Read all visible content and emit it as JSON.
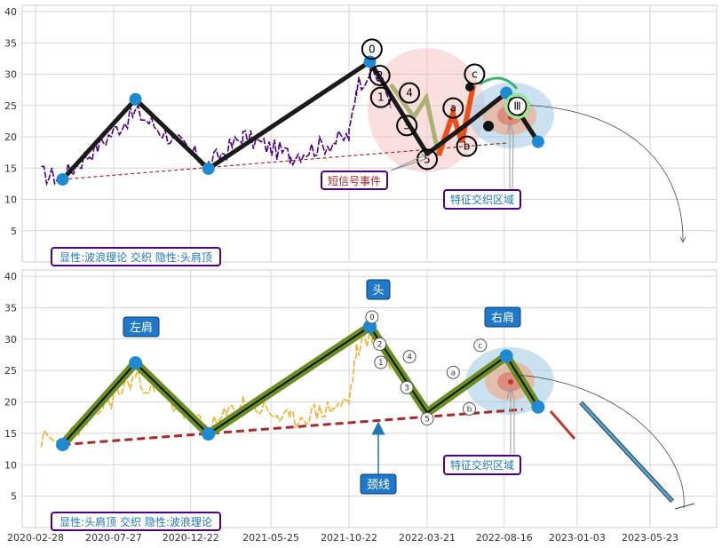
{
  "chart_data": [
    {
      "type": "line",
      "panel": "top",
      "ylim": [
        0,
        41
      ],
      "yticks": [
        5,
        10,
        15,
        20,
        25,
        30,
        35,
        40
      ],
      "grid": true,
      "price_color": "#4b0082",
      "zigzag": {
        "color": "#1a1a1a",
        "points": [
          {
            "x": "2020-04-20",
            "y": 13.2
          },
          {
            "x": "2020-09-07",
            "y": 26.0
          },
          {
            "x": "2021-01-25",
            "y": 14.9
          },
          {
            "x": "2021-12-01",
            "y": 32.0
          },
          {
            "x": "2022-03-21",
            "y": 17.3
          },
          {
            "x": "2022-06-05",
            "y": 22.0
          },
          {
            "x": "2022-08-20",
            "y": 27.0
          },
          {
            "x": "2022-10-20",
            "y": 19.2
          }
        ]
      },
      "neckline": {
        "color": "#a52a2a",
        "points": [
          {
            "x": "2020-04-20",
            "y": 13.2
          },
          {
            "x": "2022-08-20",
            "y": 19.0
          }
        ]
      },
      "wave_labels": [
        {
          "text": "0",
          "x": "2021-12-05",
          "y": 34.0
        },
        {
          "text": "2",
          "x": "2021-12-20",
          "y": 29.8
        },
        {
          "text": "1",
          "x": "2021-12-22",
          "y": 26.3
        },
        {
          "text": "4",
          "x": "2022-02-15",
          "y": 27.0
        },
        {
          "text": "3",
          "x": "2022-02-10",
          "y": 21.8
        },
        {
          "text": "5",
          "x": "2022-03-21",
          "y": 16.4
        },
        {
          "text": "a",
          "x": "2022-05-10",
          "y": 24.6
        },
        {
          "text": "b",
          "x": "2022-06-05",
          "y": 18.5
        },
        {
          "text": "c",
          "x": "2022-06-20",
          "y": 30.0
        },
        {
          "text": "Ⅲ",
          "x": "2022-09-10",
          "y": 24.9
        }
      ],
      "annotations": [
        {
          "text": "短信号事件",
          "color": "#a52a2a"
        },
        {
          "text": "特征交织区域",
          "color": "#1f77b4"
        }
      ],
      "caption": "显性:波浪理论 交织 隐性:头肩顶"
    },
    {
      "type": "line",
      "panel": "bottom",
      "ylim": [
        0,
        41
      ],
      "yticks": [
        5,
        10,
        15,
        20,
        25,
        30,
        35,
        40
      ],
      "grid": true,
      "price_color": "#f0b030",
      "head_shoulders": {
        "color": "#6b8e23",
        "points": [
          {
            "x": "2020-04-20",
            "y": 13.2
          },
          {
            "x": "2020-09-07",
            "y": 26.2
          },
          {
            "x": "2021-01-25",
            "y": 14.9
          },
          {
            "x": "2021-12-01",
            "y": 32.0
          },
          {
            "x": "2022-03-21",
            "y": 18.3
          },
          {
            "x": "2022-08-20",
            "y": 27.3
          },
          {
            "x": "2022-10-20",
            "y": 19.2
          }
        ]
      },
      "projection": {
        "points": [
          {
            "x": "2022-10-20",
            "y": 19.2
          },
          {
            "x": "2022-12-10",
            "y": 14.6
          },
          {
            "x": "2023-01-10",
            "y": 19.9
          },
          {
            "x": "2023-07-05",
            "y": 4.2
          }
        ]
      },
      "neckline": {
        "color": "#a52a2a",
        "points": [
          {
            "x": "2020-04-20",
            "y": 13.2
          },
          {
            "x": "2022-09-20",
            "y": 18.8
          }
        ]
      },
      "wave_labels": [
        {
          "text": "0",
          "x": "2021-12-05",
          "y": 33.5
        },
        {
          "text": "2",
          "x": "2021-12-20",
          "y": 29.2
        },
        {
          "text": "1",
          "x": "2021-12-22",
          "y": 26.3
        },
        {
          "text": "4",
          "x": "2022-02-15",
          "y": 27.2
        },
        {
          "text": "3",
          "x": "2022-02-10",
          "y": 22.3
        },
        {
          "text": "5",
          "x": "2022-03-21",
          "y": 17.3
        },
        {
          "text": "a",
          "x": "2022-05-10",
          "y": 24.7
        },
        {
          "text": "b",
          "x": "2022-06-10",
          "y": 18.9
        },
        {
          "text": "c",
          "x": "2022-07-01",
          "y": 29.0
        }
      ],
      "annotations": [
        {
          "text": "左肩",
          "color": "#1f77b4"
        },
        {
          "text": "头",
          "color": "#1f77b4"
        },
        {
          "text": "右肩",
          "color": "#1f77b4"
        },
        {
          "text": "颈线",
          "color": "#1f77b4"
        },
        {
          "text": "特征交织区域",
          "color": "#1f77b4"
        }
      ],
      "caption": "显性:头肩顶 交织 隐性:波浪理论"
    }
  ],
  "xaxis": {
    "ticks": [
      "2020-02-28",
      "2020-07-27",
      "2020-12-22",
      "2021-05-25",
      "2021-10-22",
      "2022-03-21",
      "2022-08-16",
      "2023-01-03",
      "2023-05-23"
    ],
    "range": [
      "2020-02-28",
      "2023-08-20"
    ]
  }
}
